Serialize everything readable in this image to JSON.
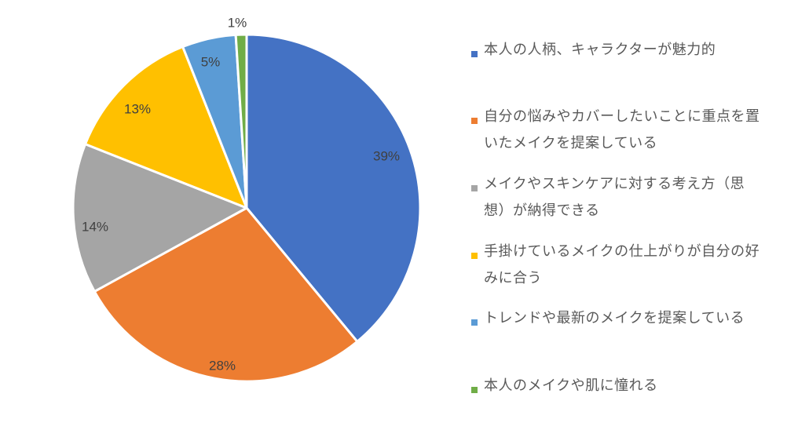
{
  "chart_data": {
    "type": "pie",
    "title": "",
    "start_angle_deg": 0,
    "direction": "clockwise",
    "legend_position": "right",
    "slices": [
      {
        "label": "本人の人柄、キャラクターが魅力的",
        "value": 39,
        "display": "39%",
        "color": "#4472C4"
      },
      {
        "label": "自分の悩みやカバーしたいことに重点を置いたメイクを提案している",
        "value": 28,
        "display": "28%",
        "color": "#ED7D31"
      },
      {
        "label": "メイクやスキンケアに対する考え方（思想）が納得できる",
        "value": 14,
        "display": "14%",
        "color": "#A5A5A5"
      },
      {
        "label": "手掛けているメイクの仕上がりが自分の好みに合う",
        "value": 13,
        "display": "13%",
        "color": "#FFC000"
      },
      {
        "label": "トレンドや最新のメイクを提案している",
        "value": 5,
        "display": "5%",
        "color": "#5B9BD5"
      },
      {
        "label": "本人のメイクや肌に憧れる",
        "value": 1,
        "display": "1%",
        "color": "#70AD47"
      }
    ]
  },
  "legend": {
    "items": [
      {
        "line1": "本人の人柄、キャラクターが魅力的",
        "line2": ""
      },
      {
        "line1": "自分の悩みやカバーしたいことに重点を置",
        "line2": "いたメイクを提案している"
      },
      {
        "line1": "メイクやスキンケアに対する考え方（思",
        "line2": "想）が納得できる"
      },
      {
        "line1": "手掛けているメイクの仕上がりが自分の好",
        "line2": "みに合う"
      },
      {
        "line1": "トレンドや最新のメイクを提案している",
        "line2": ""
      },
      {
        "line1": "本人のメイクや肌に憧れる",
        "line2": ""
      }
    ]
  }
}
